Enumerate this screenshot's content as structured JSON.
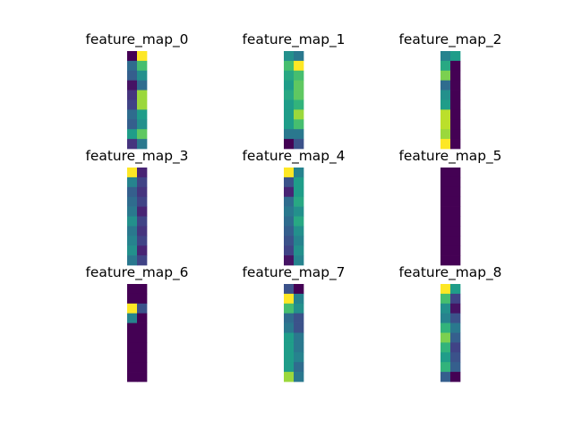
{
  "chart_data": {
    "type": "heatmap",
    "colormap": "viridis",
    "vmin": 0,
    "vmax": 1,
    "grid": false,
    "axes": "off",
    "layout": {
      "rows": 3,
      "cols": 3
    },
    "panels": [
      {
        "title": "feature_map_0",
        "values": [
          [
            0.0,
            1.0
          ],
          [
            0.35,
            0.7
          ],
          [
            0.3,
            0.5
          ],
          [
            0.05,
            0.35
          ],
          [
            0.15,
            0.85
          ],
          [
            0.2,
            0.85
          ],
          [
            0.35,
            0.55
          ],
          [
            0.3,
            0.5
          ],
          [
            0.55,
            0.75
          ],
          [
            0.15,
            0.4
          ]
        ]
      },
      {
        "title": "feature_map_1",
        "values": [
          [
            0.5,
            0.4
          ],
          [
            0.7,
            1.0
          ],
          [
            0.6,
            0.7
          ],
          [
            0.55,
            0.75
          ],
          [
            0.6,
            0.75
          ],
          [
            0.55,
            0.65
          ],
          [
            0.55,
            0.85
          ],
          [
            0.55,
            0.7
          ],
          [
            0.4,
            0.4
          ],
          [
            0.0,
            0.25
          ]
        ]
      },
      {
        "title": "feature_map_2",
        "values": [
          [
            0.45,
            0.55
          ],
          [
            0.6,
            0.0
          ],
          [
            0.8,
            0.0
          ],
          [
            0.35,
            0.0
          ],
          [
            0.5,
            0.0
          ],
          [
            0.55,
            0.0
          ],
          [
            0.9,
            0.0
          ],
          [
            0.9,
            0.0
          ],
          [
            0.85,
            0.0
          ],
          [
            1.0,
            0.0
          ]
        ]
      },
      {
        "title": "feature_map_3",
        "values": [
          [
            1.0,
            0.1
          ],
          [
            0.45,
            0.2
          ],
          [
            0.3,
            0.15
          ],
          [
            0.35,
            0.2
          ],
          [
            0.4,
            0.1
          ],
          [
            0.5,
            0.2
          ],
          [
            0.4,
            0.15
          ],
          [
            0.45,
            0.2
          ],
          [
            0.5,
            0.1
          ],
          [
            0.4,
            0.2
          ]
        ]
      },
      {
        "title": "feature_map_4",
        "values": [
          [
            1.0,
            0.45
          ],
          [
            0.25,
            0.55
          ],
          [
            0.1,
            0.55
          ],
          [
            0.35,
            0.6
          ],
          [
            0.4,
            0.5
          ],
          [
            0.35,
            0.6
          ],
          [
            0.3,
            0.5
          ],
          [
            0.25,
            0.45
          ],
          [
            0.2,
            0.5
          ],
          [
            0.05,
            0.45
          ]
        ]
      },
      {
        "title": "feature_map_5",
        "values": [
          [
            0.0,
            0.0
          ],
          [
            0.0,
            0.0
          ],
          [
            0.0,
            0.0
          ],
          [
            0.0,
            0.0
          ],
          [
            0.0,
            0.0
          ],
          [
            0.0,
            0.0
          ],
          [
            0.0,
            0.0
          ],
          [
            0.0,
            0.0
          ],
          [
            0.0,
            0.0
          ],
          [
            0.0,
            0.0
          ]
        ]
      },
      {
        "title": "feature_map_6",
        "values": [
          [
            0.0,
            0.0
          ],
          [
            0.0,
            0.0
          ],
          [
            1.0,
            0.25
          ],
          [
            0.45,
            0.0
          ],
          [
            0.0,
            0.0
          ],
          [
            0.0,
            0.0
          ],
          [
            0.0,
            0.0
          ],
          [
            0.0,
            0.0
          ],
          [
            0.0,
            0.0
          ],
          [
            0.0,
            0.0
          ]
        ]
      },
      {
        "title": "feature_map_7",
        "values": [
          [
            0.25,
            0.0
          ],
          [
            1.0,
            0.45
          ],
          [
            0.7,
            0.5
          ],
          [
            0.35,
            0.25
          ],
          [
            0.4,
            0.25
          ],
          [
            0.55,
            0.4
          ],
          [
            0.55,
            0.4
          ],
          [
            0.55,
            0.45
          ],
          [
            0.55,
            0.35
          ],
          [
            0.85,
            0.4
          ]
        ]
      },
      {
        "title": "feature_map_8",
        "values": [
          [
            1.0,
            0.55
          ],
          [
            0.7,
            0.2
          ],
          [
            0.5,
            0.05
          ],
          [
            0.45,
            0.25
          ],
          [
            0.65,
            0.4
          ],
          [
            0.8,
            0.3
          ],
          [
            0.65,
            0.2
          ],
          [
            0.55,
            0.25
          ],
          [
            0.65,
            0.3
          ],
          [
            0.3,
            0.0
          ]
        ]
      }
    ]
  }
}
